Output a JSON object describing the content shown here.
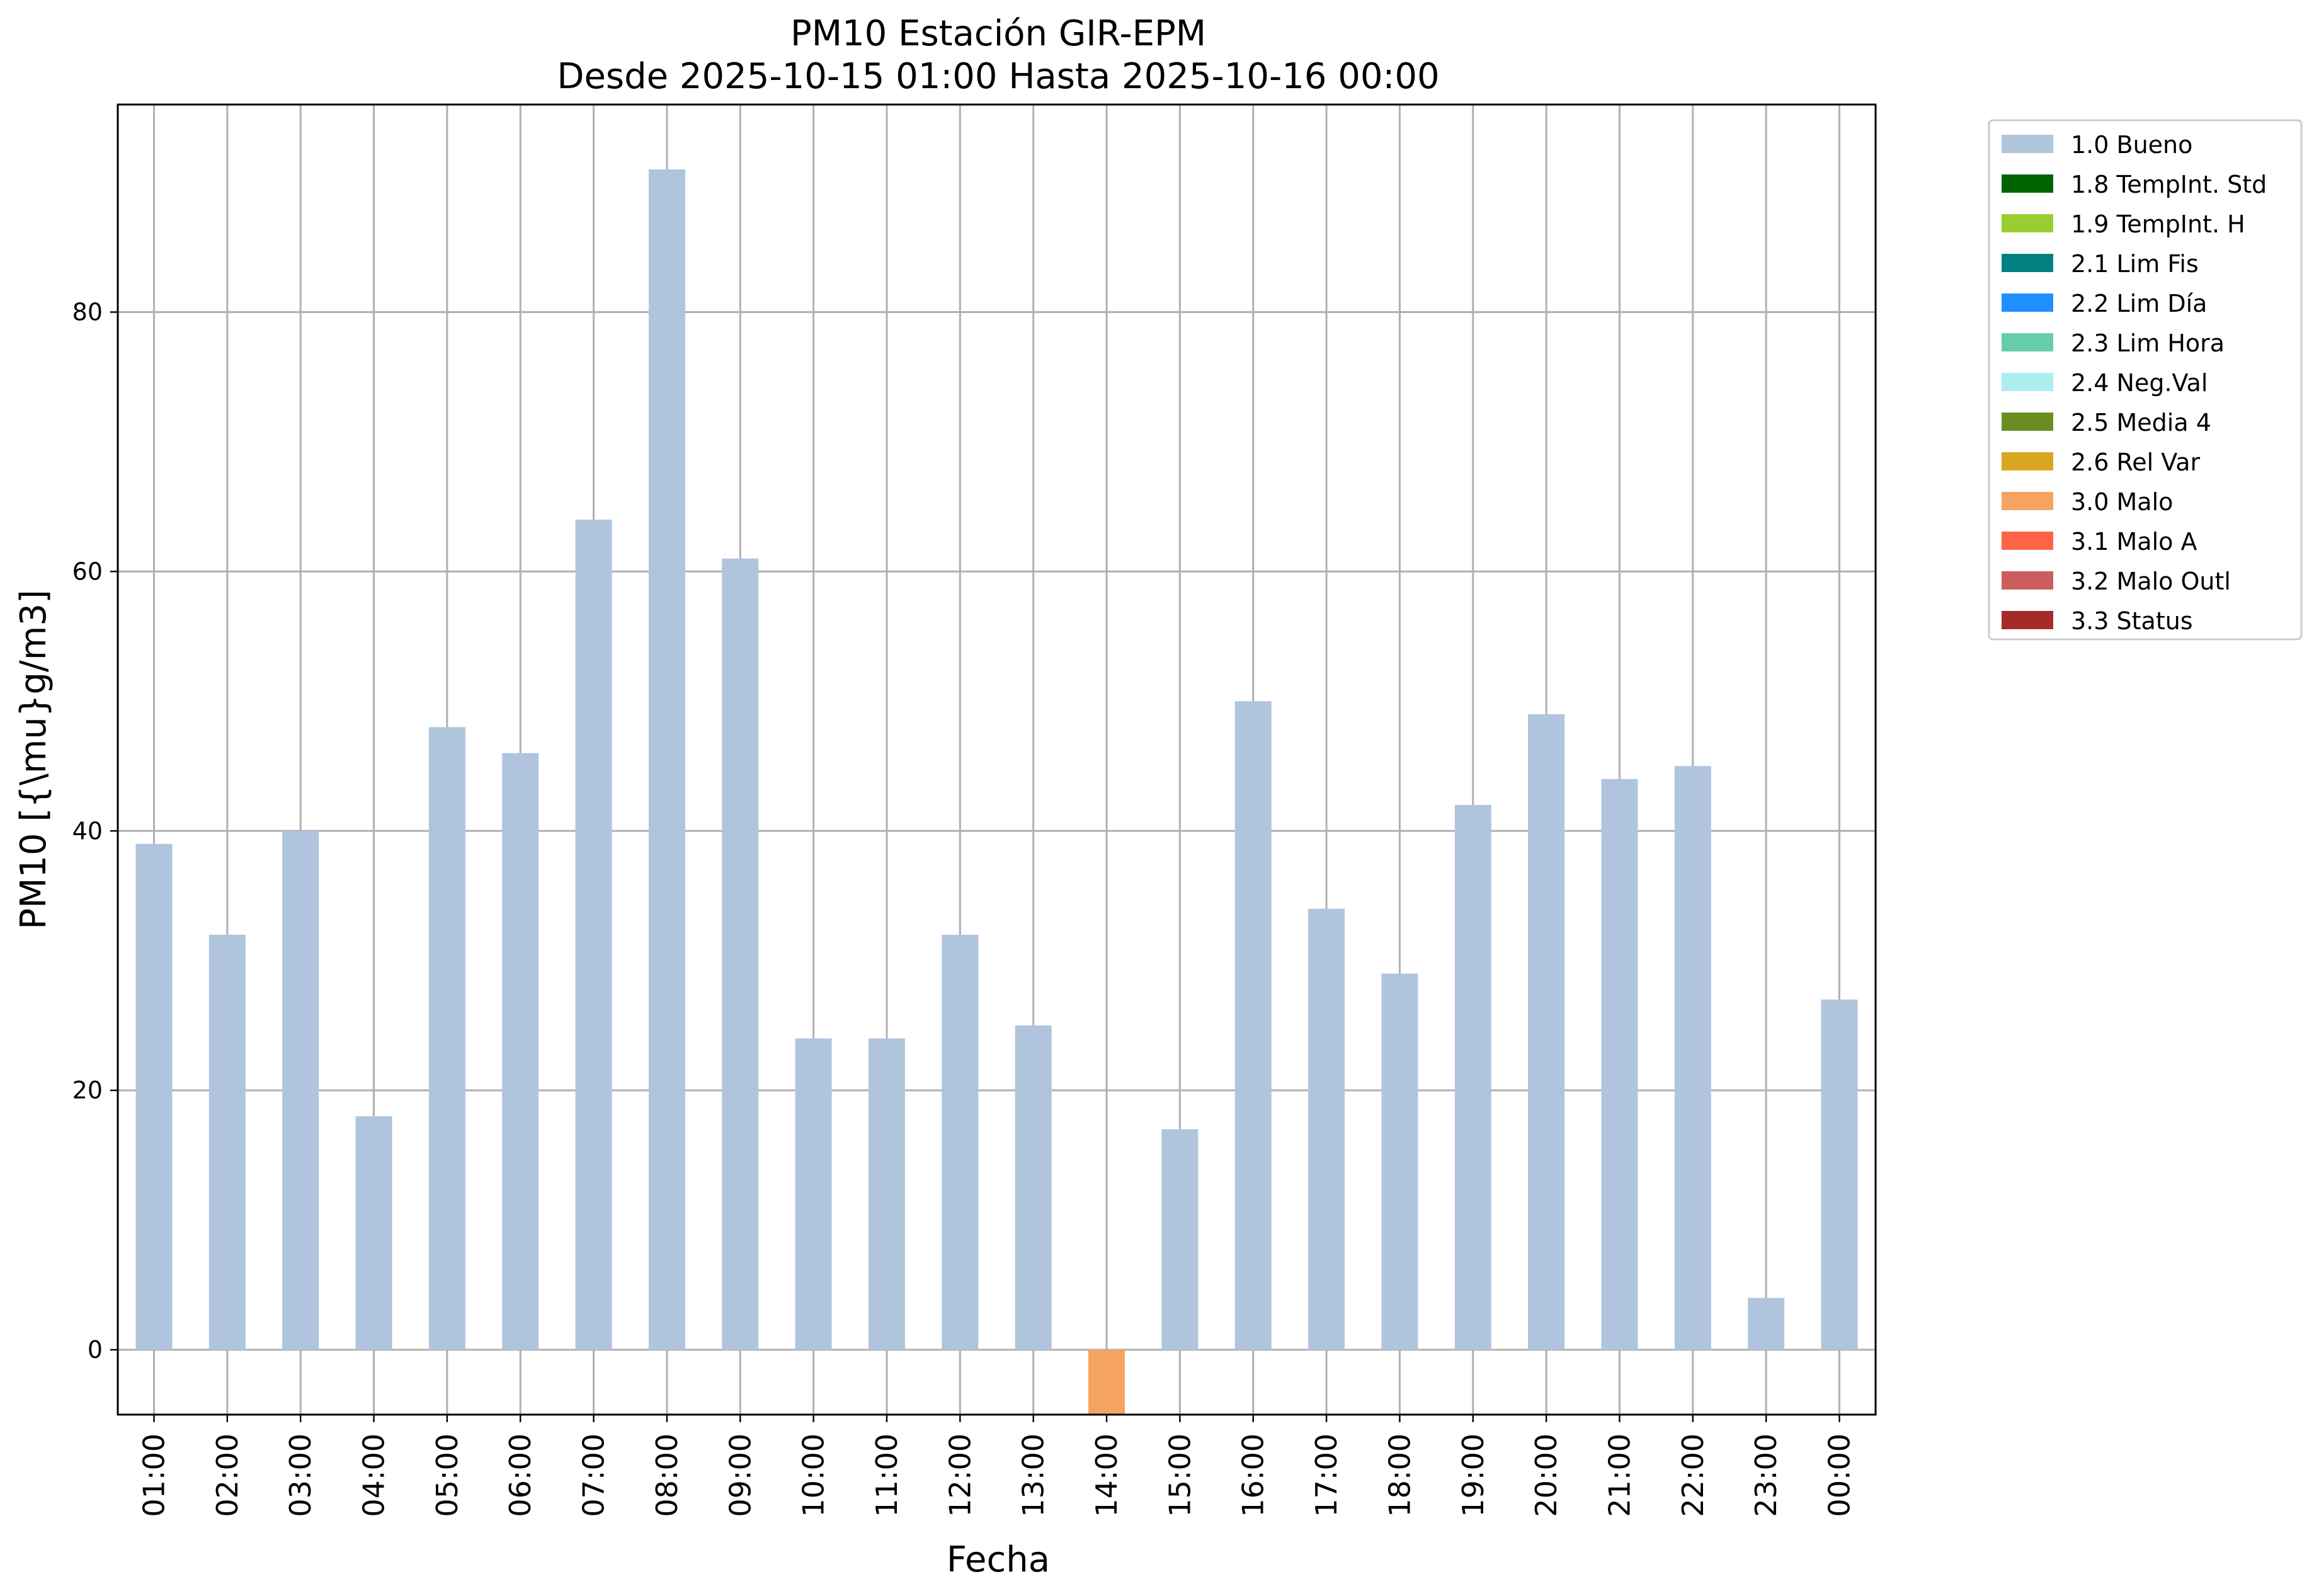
{
  "chart_data": {
    "type": "bar",
    "title": [
      "PM10 Estación GIR-EPM",
      "Desde 2025-10-15 01:00 Hasta 2025-10-16 00:00"
    ],
    "xlabel": "Fecha",
    "ylabel": "PM10 [{\\mu}g/m3]",
    "ylim": [
      -5,
      96
    ],
    "yticks": [
      0,
      20,
      40,
      60,
      80
    ],
    "grid": true,
    "legend_position": "outside-top-right",
    "categories": [
      "01:00",
      "02:00",
      "03:00",
      "04:00",
      "05:00",
      "06:00",
      "07:00",
      "08:00",
      "09:00",
      "10:00",
      "11:00",
      "12:00",
      "13:00",
      "14:00",
      "15:00",
      "16:00",
      "17:00",
      "18:00",
      "19:00",
      "20:00",
      "21:00",
      "22:00",
      "23:00",
      "00:00"
    ],
    "values": [
      39,
      32,
      40,
      18,
      48,
      46,
      64,
      91,
      61,
      24,
      24,
      32,
      25,
      -5,
      17,
      50,
      34,
      29,
      42,
      49,
      44,
      45,
      4,
      27
    ],
    "bar_flags": [
      "1.0 Bueno",
      "1.0 Bueno",
      "1.0 Bueno",
      "1.0 Bueno",
      "1.0 Bueno",
      "1.0 Bueno",
      "1.0 Bueno",
      "1.0 Bueno",
      "1.0 Bueno",
      "1.0 Bueno",
      "1.0 Bueno",
      "1.0 Bueno",
      "1.0 Bueno",
      "3.0 Malo",
      "1.0 Bueno",
      "1.0 Bueno",
      "1.0 Bueno",
      "1.0 Bueno",
      "1.0 Bueno",
      "1.0 Bueno",
      "1.0 Bueno",
      "1.0 Bueno",
      "1.0 Bueno",
      "1.0 Bueno"
    ],
    "legend": [
      {
        "label": "1.0 Bueno",
        "color": "#b0c4de"
      },
      {
        "label": "1.8 TempInt. Std",
        "color": "#006400"
      },
      {
        "label": "1.9 TempInt. H",
        "color": "#9acd32"
      },
      {
        "label": "2.1 Lim Fis",
        "color": "#008080"
      },
      {
        "label": "2.2 Lim Día",
        "color": "#1e90ff"
      },
      {
        "label": "2.3 Lim Hora",
        "color": "#66cdaa"
      },
      {
        "label": "2.4 Neg.Val",
        "color": "#afeeee"
      },
      {
        "label": "2.5 Media 4",
        "color": "#6b8e23"
      },
      {
        "label": "2.6 Rel Var",
        "color": "#daa520"
      },
      {
        "label": "3.0 Malo",
        "color": "#f4a460"
      },
      {
        "label": "3.1 Malo A",
        "color": "#ff6347"
      },
      {
        "label": "3.2 Malo Outl",
        "color": "#cd5c5c"
      },
      {
        "label": "3.3 Status",
        "color": "#a52a2a"
      }
    ]
  }
}
